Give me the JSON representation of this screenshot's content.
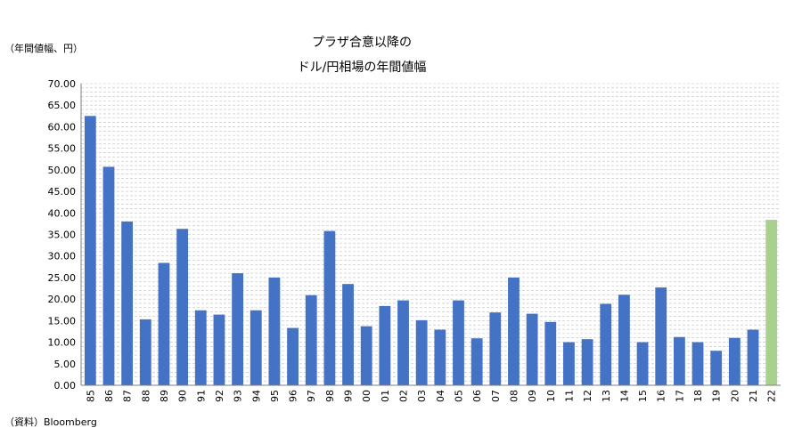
{
  "chart_data": {
    "type": "bar",
    "title_lines": [
      "プラザ合意以降の",
      "ドル/円相場の年間値幅"
    ],
    "unit_label": "（年間値幅、円）",
    "source": "（資料）Bloomberg",
    "ylim": [
      0,
      70
    ],
    "y_ticks": [
      "0.00",
      "5.00",
      "10.00",
      "15.00",
      "20.00",
      "25.00",
      "30.00",
      "35.00",
      "40.00",
      "45.00",
      "50.00",
      "55.00",
      "60.00",
      "65.00",
      "70.00"
    ],
    "grid": "dashed-horizontal",
    "categories": [
      "85",
      "86",
      "87",
      "88",
      "89",
      "90",
      "91",
      "92",
      "93",
      "94",
      "95",
      "96",
      "97",
      "98",
      "99",
      "00",
      "01",
      "02",
      "03",
      "04",
      "05",
      "06",
      "07",
      "08",
      "09",
      "10",
      "11",
      "12",
      "13",
      "14",
      "15",
      "16",
      "17",
      "18",
      "19",
      "20",
      "21",
      "22"
    ],
    "values": [
      62.5,
      50.7,
      38.0,
      15.3,
      28.4,
      36.3,
      17.4,
      16.4,
      26.0,
      17.4,
      25.0,
      13.3,
      20.9,
      35.8,
      23.5,
      13.7,
      18.4,
      19.7,
      15.1,
      12.9,
      19.7,
      10.9,
      16.9,
      25.0,
      16.6,
      14.7,
      10.0,
      10.7,
      18.9,
      21.0,
      10.0,
      22.7,
      11.2,
      10.0,
      8.0,
      11.0,
      12.9,
      38.4
    ],
    "colors": {
      "bar": "#4472C4",
      "highlight": "#A9D18E",
      "grid": "#BFBFBF",
      "axis": "#7F7F7F"
    },
    "highlight_category": "22"
  }
}
